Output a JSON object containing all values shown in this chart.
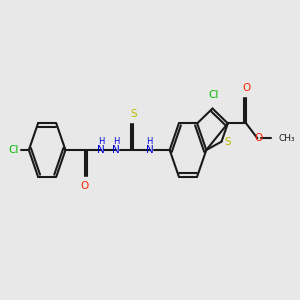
{
  "background_color": "#e8e8e8",
  "bond_color": "#1a1a1a",
  "bond_width": 1.5,
  "cl_color": "#00bb00",
  "o_color": "#ff2200",
  "s_color": "#bbbb00",
  "n_color": "#0000dd",
  "figsize": [
    3.0,
    3.0
  ],
  "dpi": 100,
  "xlim": [
    0,
    10
  ],
  "ylim": [
    2,
    8
  ]
}
